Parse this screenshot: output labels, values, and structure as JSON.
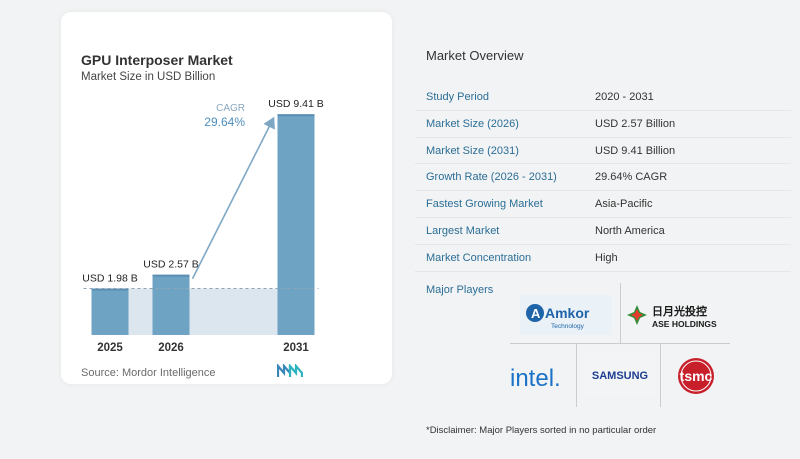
{
  "chart": {
    "title": "GPU Interposer Market",
    "subtitle": "Market Size in USD Billion",
    "source": "Source:  Mordor Intelligence",
    "cagr_label": "CAGR",
    "cagr_value": "29.64%"
  },
  "chart_data": {
    "type": "bar",
    "categories": [
      "2025",
      "2026",
      "2031"
    ],
    "values": [
      1.98,
      2.57,
      9.41
    ],
    "value_labels": [
      "USD 1.98 B",
      "USD 2.57 B",
      "USD 9.41 B"
    ],
    "ylim": [
      0,
      10
    ],
    "annotation": {
      "text": "CAGR 29.64%",
      "from": "2026",
      "to": "2031"
    },
    "baseline_reference": 1.98,
    "colors": {
      "bar": "#6fa3c4",
      "bar_top": "#5a8fb3",
      "shade": "#dbe6ef",
      "arrow": "#7ea7c4",
      "baseline": "#8fa5b6"
    }
  },
  "overview": {
    "title": "Market Overview",
    "rows": [
      {
        "label": "Study Period",
        "value": "2020 - 2031"
      },
      {
        "label": "Market Size (2026)",
        "value": "USD 2.57 Billion"
      },
      {
        "label": "Market Size (2031)",
        "value": "USD 9.41 Billion"
      },
      {
        "label": "Growth Rate (2026 - 2031)",
        "value": "29.64% CAGR"
      },
      {
        "label": "Fastest Growing Market",
        "value": "Asia-Pacific"
      },
      {
        "label": "Largest Market",
        "value": "North America"
      },
      {
        "label": "Market Concentration",
        "value": "High"
      }
    ]
  },
  "players": {
    "title": "Major Players",
    "logos": [
      "Amkor Technology",
      "ASE Holdings",
      "Intel",
      "Samsung",
      "TSMC"
    ],
    "amkor_main": "Amkor",
    "amkor_sub": "Technology",
    "ase_cjk": "日月光投控",
    "ase_en": "ASE HOLDINGS",
    "intel": "intel.",
    "samsung": "SAMSUNG",
    "tsmc": "tsmc"
  },
  "disclaimer": "*Disclaimer: Major Players sorted in no particular order"
}
